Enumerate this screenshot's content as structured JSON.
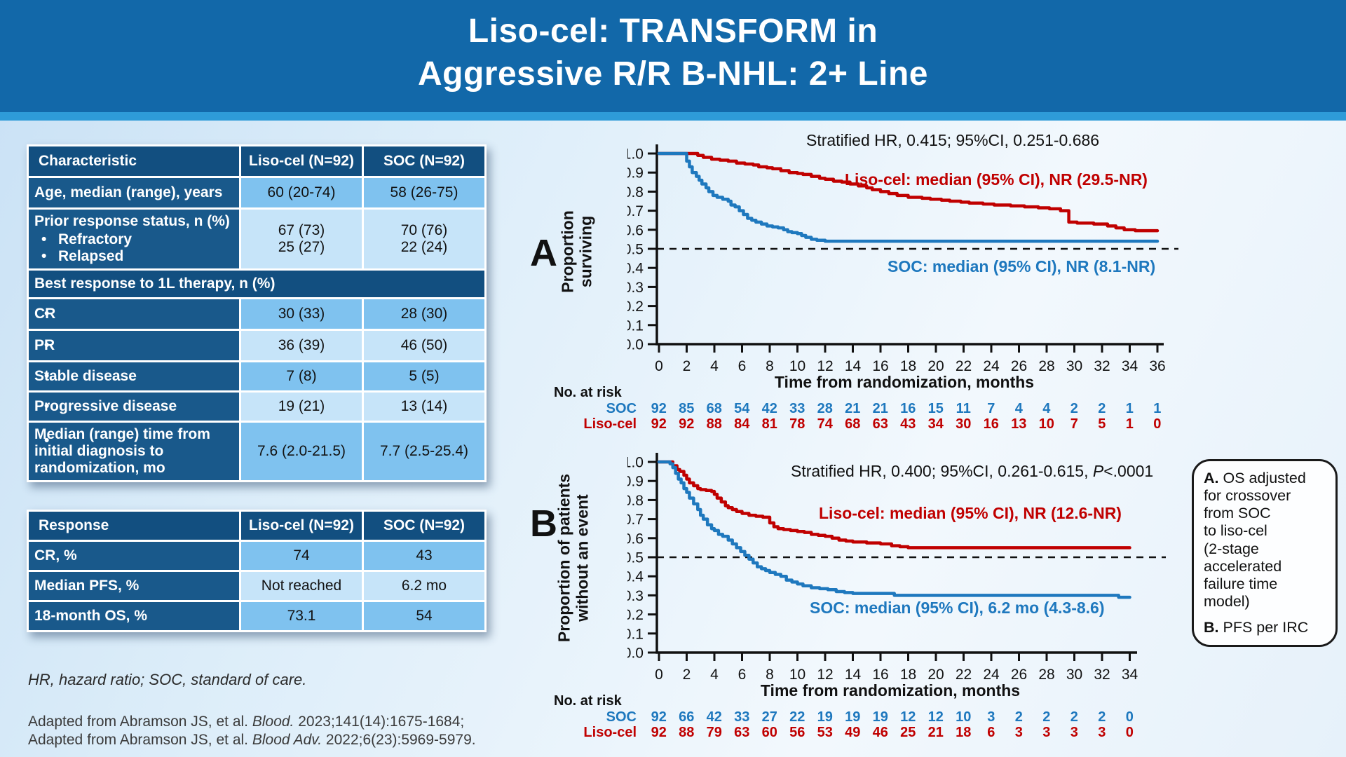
{
  "title": {
    "line1": "Liso-cel: TRANSFORM in",
    "line2": "Aggressive R/R B-NHL: 2+ Line"
  },
  "colors": {
    "header_blue": "#1268A9",
    "header_strip": "#2E9BD8",
    "table_header_navy": "#124F80",
    "table_label_navy": "#19598B",
    "cell_medium_blue": "#7FC2EF",
    "cell_light_blue": "#C6E4F9",
    "liso_cel_red": "#C00000",
    "soc_blue": "#1E78BE"
  },
  "t1": {
    "h0": "Characteristic",
    "h1": "Liso-cel (N=92)",
    "h2": "SOC (N=92)",
    "r_age": {
      "label": "Age, median (range), years",
      "liso": "60 (20-74)",
      "soc": "58 (26-75)"
    },
    "r_prior": {
      "label": "Prior response status, n (%)",
      "b1": "Refractory",
      "b2": "Relapsed",
      "liso": "67 (73)\n25 (27)",
      "soc": "70 (76)\n22 (24)"
    },
    "sec": "Best response to 1L therapy,  n (%)",
    "r_cr": {
      "label": "CR",
      "liso": "30 (33)",
      "soc": "28 (30)"
    },
    "r_pr": {
      "label": "PR",
      "liso": "36 (39)",
      "soc": "46 (50)"
    },
    "r_sd": {
      "label": "Stable disease",
      "liso": "7 (8)",
      "soc": "5 (5)"
    },
    "r_pd": {
      "label": "Progressive disease",
      "liso": "19 (21)",
      "soc": "13 (14)"
    },
    "r_med": {
      "label": "Median (range) time from initial diagnosis to randomization, mo",
      "liso": "7.6 (2.0-21.5)",
      "soc": "7.7 (2.5-25.4)"
    }
  },
  "t2": {
    "h0": "Response",
    "h1": "Liso-cel (N=92)",
    "h2": "SOC (N=92)",
    "r_cr": {
      "label": "CR, %",
      "liso": "74",
      "soc": "43"
    },
    "r_pfs": {
      "label": "Median PFS, %",
      "liso": "Not reached",
      "soc": "6.2 mo"
    },
    "r_os": {
      "label": "18-month OS, %",
      "liso": "73.1",
      "soc": "54"
    }
  },
  "footnotes": {
    "abbrev": "HR, hazard ratio; SOC, standard of care.",
    "cite1": {
      "pre": "Adapted from Abramson JS, et al. ",
      "journal": "Blood.",
      "post": " 2023;141(14):1675-1684;"
    },
    "cite2": {
      "pre": "Adapted from Abramson JS, et al. ",
      "journal": "Blood Adv.",
      "post": " 2022;6(23):5969-5979."
    }
  },
  "callout": {
    "a_bold": "A.",
    "a_text": " OS adjusted\nfor crossover\nfrom SOC\nto liso-cel\n(2-stage\naccelerated\nfailure time\nmodel)",
    "b_bold": "B.",
    "b_text": " PFS per IRC"
  },
  "chart_data": [
    {
      "id": "A",
      "panel_label": "A",
      "type": "line",
      "subtype": "kaplan-meier-step",
      "annotation": "Stratified HR, 0.415; 95%CI, 0.251-0.686",
      "xlabel": "Time from randomization, months",
      "ylabel": "Proportion\nsurviving",
      "xlim": [
        0,
        36
      ],
      "ylim": [
        0,
        1
      ],
      "ytick_step": 0.1,
      "xticks": [
        0,
        2,
        4,
        6,
        8,
        10,
        12,
        14,
        16,
        18,
        20,
        22,
        24,
        26,
        28,
        30,
        32,
        34,
        36
      ],
      "reference_line_y": 0.5,
      "grid": false,
      "series": [
        {
          "name": "Liso-cel",
          "color": "#C00000",
          "label": "Liso-cel: median (95% CI), NR (29.5-NR)",
          "points": [
            [
              0,
              1
            ],
            [
              2.6,
              1
            ],
            [
              2.8,
              0.99
            ],
            [
              3.2,
              0.98
            ],
            [
              3.8,
              0.97
            ],
            [
              4.4,
              0.965
            ],
            [
              5,
              0.96
            ],
            [
              5.6,
              0.95
            ],
            [
              6.2,
              0.945
            ],
            [
              6.8,
              0.94
            ],
            [
              7.2,
              0.93
            ],
            [
              7.8,
              0.925
            ],
            [
              8.2,
              0.92
            ],
            [
              8.8,
              0.91
            ],
            [
              9.4,
              0.9
            ],
            [
              10,
              0.895
            ],
            [
              10.4,
              0.89
            ],
            [
              11,
              0.88
            ],
            [
              11.6,
              0.87
            ],
            [
              12,
              0.865
            ],
            [
              12.6,
              0.855
            ],
            [
              13.2,
              0.85
            ],
            [
              13.8,
              0.84
            ],
            [
              14.4,
              0.83
            ],
            [
              15,
              0.82
            ],
            [
              15.4,
              0.81
            ],
            [
              16,
              0.8
            ],
            [
              16.6,
              0.79
            ],
            [
              17.2,
              0.78
            ],
            [
              18,
              0.77
            ],
            [
              19,
              0.765
            ],
            [
              19.6,
              0.76
            ],
            [
              20.4,
              0.755
            ],
            [
              21,
              0.75
            ],
            [
              21.8,
              0.745
            ],
            [
              22.4,
              0.74
            ],
            [
              23.4,
              0.735
            ],
            [
              24.2,
              0.73
            ],
            [
              25.4,
              0.725
            ],
            [
              26.4,
              0.72
            ],
            [
              27.4,
              0.715
            ],
            [
              28.2,
              0.71
            ],
            [
              29,
              0.7
            ],
            [
              29.6,
              0.64
            ],
            [
              30.2,
              0.635
            ],
            [
              31.4,
              0.63
            ],
            [
              32.4,
              0.62
            ],
            [
              33,
              0.61
            ],
            [
              33.6,
              0.6
            ],
            [
              34.4,
              0.595
            ],
            [
              36,
              0.595
            ]
          ]
        },
        {
          "name": "SOC",
          "color": "#1E78BE",
          "label": "SOC: median (95% CI), NR (8.1-NR)",
          "points": [
            [
              0,
              1
            ],
            [
              1.7,
              1
            ],
            [
              2,
              0.96
            ],
            [
              2.2,
              0.93
            ],
            [
              2.4,
              0.9
            ],
            [
              2.7,
              0.88
            ],
            [
              2.9,
              0.86
            ],
            [
              3.1,
              0.84
            ],
            [
              3.4,
              0.82
            ],
            [
              3.6,
              0.8
            ],
            [
              3.9,
              0.78
            ],
            [
              4.2,
              0.77
            ],
            [
              4.6,
              0.76
            ],
            [
              5,
              0.75
            ],
            [
              5.2,
              0.73
            ],
            [
              5.5,
              0.72
            ],
            [
              5.8,
              0.7
            ],
            [
              6.1,
              0.68
            ],
            [
              6.4,
              0.66
            ],
            [
              6.7,
              0.65
            ],
            [
              7,
              0.64
            ],
            [
              7.4,
              0.63
            ],
            [
              7.8,
              0.62
            ],
            [
              8.2,
              0.615
            ],
            [
              8.6,
              0.61
            ],
            [
              9,
              0.6
            ],
            [
              9.3,
              0.59
            ],
            [
              9.6,
              0.585
            ],
            [
              10,
              0.58
            ],
            [
              10.3,
              0.57
            ],
            [
              10.6,
              0.56
            ],
            [
              11,
              0.55
            ],
            [
              11.4,
              0.545
            ],
            [
              12,
              0.54
            ],
            [
              36,
              0.54
            ]
          ]
        }
      ],
      "risk_table": {
        "title": "No. at risk",
        "rows": [
          {
            "name": "SOC",
            "color": "#1E78BE",
            "values": [
              92,
              85,
              68,
              54,
              42,
              33,
              28,
              21,
              21,
              16,
              15,
              11,
              7,
              4,
              4,
              2,
              2,
              1,
              1
            ]
          },
          {
            "name": "Liso-cel",
            "color": "#C00000",
            "values": [
              92,
              92,
              88,
              84,
              81,
              78,
              74,
              68,
              63,
              43,
              34,
              30,
              16,
              13,
              10,
              7,
              5,
              1,
              0
            ]
          }
        ]
      }
    },
    {
      "id": "B",
      "panel_label": "B",
      "type": "line",
      "subtype": "kaplan-meier-step",
      "annotation_pre": "Stratified HR, 0.400; 95%CI, 0.261-0.615, ",
      "annotation_italic": "P",
      "annotation_post": "<.0001",
      "xlabel": "Time from randomization, months",
      "ylabel": "Proportion of patients\nwithout an event",
      "xlim": [
        0,
        34
      ],
      "ylim": [
        0,
        1
      ],
      "ytick_step": 0.1,
      "xticks": [
        0,
        2,
        4,
        6,
        8,
        10,
        12,
        14,
        16,
        18,
        20,
        22,
        24,
        26,
        28,
        30,
        32,
        34
      ],
      "reference_line_y": 0.5,
      "grid": false,
      "series": [
        {
          "name": "Liso-cel",
          "color": "#C00000",
          "label": "Liso-cel: median (95% CI), NR (12.6-NR)",
          "points": [
            [
              0,
              1
            ],
            [
              0.8,
              1
            ],
            [
              1,
              0.98
            ],
            [
              1.3,
              0.96
            ],
            [
              1.5,
              0.95
            ],
            [
              1.8,
              0.93
            ],
            [
              2,
              0.91
            ],
            [
              2.2,
              0.89
            ],
            [
              2.5,
              0.875
            ],
            [
              2.8,
              0.86
            ],
            [
              3,
              0.855
            ],
            [
              3.4,
              0.85
            ],
            [
              3.8,
              0.845
            ],
            [
              4,
              0.83
            ],
            [
              4.2,
              0.81
            ],
            [
              4.5,
              0.79
            ],
            [
              4.8,
              0.77
            ],
            [
              5,
              0.76
            ],
            [
              5.3,
              0.75
            ],
            [
              5.6,
              0.74
            ],
            [
              6,
              0.73
            ],
            [
              6.5,
              0.72
            ],
            [
              7,
              0.715
            ],
            [
              7.5,
              0.71
            ],
            [
              8,
              0.68
            ],
            [
              8.3,
              0.66
            ],
            [
              8.6,
              0.65
            ],
            [
              9,
              0.645
            ],
            [
              9.5,
              0.64
            ],
            [
              10,
              0.635
            ],
            [
              10.5,
              0.63
            ],
            [
              11,
              0.62
            ],
            [
              11.5,
              0.615
            ],
            [
              12,
              0.61
            ],
            [
              12.5,
              0.6
            ],
            [
              13,
              0.59
            ],
            [
              13.5,
              0.585
            ],
            [
              14,
              0.58
            ],
            [
              15,
              0.575
            ],
            [
              16,
              0.57
            ],
            [
              16.8,
              0.56
            ],
            [
              17.4,
              0.555
            ],
            [
              18,
              0.55
            ],
            [
              34,
              0.55
            ]
          ]
        },
        {
          "name": "SOC",
          "color": "#1E78BE",
          "label": "SOC: median (95% CI), 6.2 mo (4.3-8.6)",
          "points": [
            [
              0,
              1
            ],
            [
              0.8,
              0.99
            ],
            [
              1,
              0.97
            ],
            [
              1.2,
              0.94
            ],
            [
              1.4,
              0.91
            ],
            [
              1.6,
              0.89
            ],
            [
              1.8,
              0.86
            ],
            [
              2,
              0.84
            ],
            [
              2.2,
              0.81
            ],
            [
              2.5,
              0.78
            ],
            [
              2.8,
              0.75
            ],
            [
              3,
              0.72
            ],
            [
              3.2,
              0.7
            ],
            [
              3.5,
              0.67
            ],
            [
              3.8,
              0.65
            ],
            [
              4,
              0.64
            ],
            [
              4.3,
              0.62
            ],
            [
              4.6,
              0.61
            ],
            [
              5,
              0.59
            ],
            [
              5.3,
              0.57
            ],
            [
              5.6,
              0.55
            ],
            [
              5.9,
              0.53
            ],
            [
              6.2,
              0.51
            ],
            [
              6.5,
              0.49
            ],
            [
              6.8,
              0.47
            ],
            [
              7.1,
              0.45
            ],
            [
              7.4,
              0.44
            ],
            [
              7.7,
              0.43
            ],
            [
              8,
              0.42
            ],
            [
              8.4,
              0.41
            ],
            [
              8.8,
              0.4
            ],
            [
              9.2,
              0.38
            ],
            [
              9.6,
              0.37
            ],
            [
              10,
              0.36
            ],
            [
              10.4,
              0.35
            ],
            [
              11,
              0.34
            ],
            [
              11.6,
              0.335
            ],
            [
              12.2,
              0.33
            ],
            [
              12.8,
              0.32
            ],
            [
              13.4,
              0.315
            ],
            [
              14,
              0.31
            ],
            [
              16.6,
              0.31
            ],
            [
              17,
              0.3
            ],
            [
              32.8,
              0.3
            ],
            [
              33.2,
              0.29
            ],
            [
              34,
              0.29
            ]
          ]
        }
      ],
      "risk_table": {
        "title": "No. at risk",
        "rows": [
          {
            "name": "SOC",
            "color": "#1E78BE",
            "values": [
              92,
              66,
              42,
              33,
              27,
              22,
              19,
              19,
              19,
              12,
              12,
              10,
              3,
              2,
              2,
              2,
              2,
              0
            ]
          },
          {
            "name": "Liso-cel",
            "color": "#C00000",
            "values": [
              92,
              88,
              79,
              63,
              60,
              56,
              53,
              49,
              46,
              25,
              21,
              18,
              6,
              3,
              3,
              3,
              3,
              0
            ]
          }
        ]
      }
    }
  ]
}
